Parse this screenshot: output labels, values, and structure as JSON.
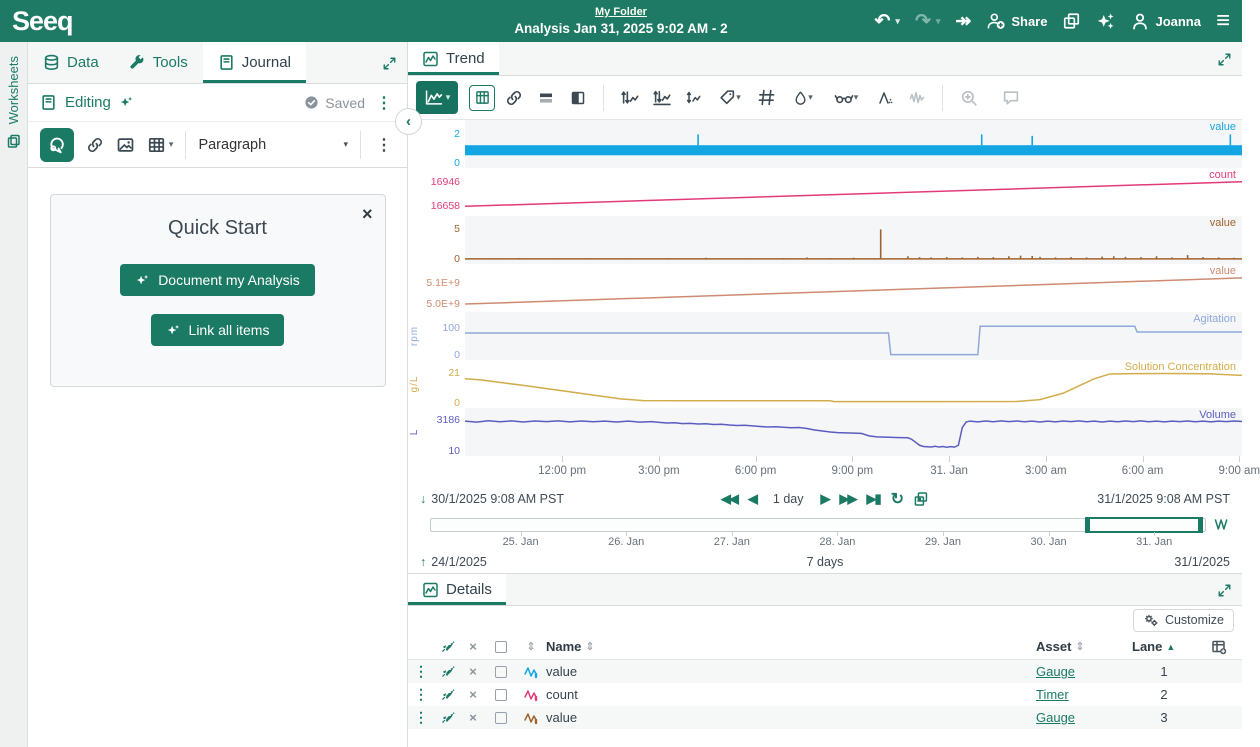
{
  "header": {
    "logo": "Seeq",
    "folder_link": "My Folder",
    "title": "Analysis Jan 31, 2025 9:02 AM - 2",
    "share_label": "Share",
    "user_name": "Joanna"
  },
  "worksheets_rail": {
    "label": "Worksheets"
  },
  "journal": {
    "tabs": [
      {
        "label": "Data"
      },
      {
        "label": "Tools"
      },
      {
        "label": "Journal"
      }
    ],
    "editing_label": "Editing",
    "saved_label": "Saved",
    "paragraph_label": "Paragraph",
    "quick_start": {
      "title": "Quick Start",
      "doc_button": "Document my Analysis",
      "link_button": "Link all items"
    }
  },
  "trend": {
    "tab_label": "Trend",
    "display_range": {
      "start": "30/1/2025 9:08 AM  PST",
      "end": "31/1/2025 9:08 AM  PST",
      "duration": "1 day"
    },
    "investigate_range": {
      "start": "24/1/2025",
      "end": "31/1/2025",
      "duration": "7 days"
    }
  },
  "details": {
    "tab_label": "Details",
    "customize_label": "Customize",
    "columns": {
      "name": "Name",
      "asset": "Asset",
      "lane": "Lane"
    },
    "rows": [
      {
        "name": "value",
        "asset": "Gauge",
        "lane": "1",
        "color": "#14a5e3"
      },
      {
        "name": "count",
        "asset": "Timer",
        "lane": "2",
        "color": "#e23a78"
      },
      {
        "name": "value",
        "asset": "Gauge",
        "lane": "3",
        "color": "#a0622d"
      }
    ]
  },
  "chart_data": {
    "type": "line",
    "x_axis_labels": [
      "12:00 pm",
      "3:00 pm",
      "6:00 pm",
      "9:00 pm",
      "31. Jan",
      "3:00 am",
      "6:00 am",
      "9:00 am"
    ],
    "x_range": [
      "30/1/2025 9:08 AM PST",
      "31/1/2025 9:08 AM PST"
    ],
    "navigator": {
      "day_labels": [
        "25. Jan",
        "26. Jan",
        "27. Jan",
        "28. Jan",
        "29. Jan",
        "30. Jan",
        "31. Jan"
      ],
      "range": [
        "24/1/2025",
        "31/1/2025"
      ],
      "selection_pct": [
        84.5,
        99.7
      ]
    },
    "lanes": [
      {
        "lane": 1,
        "label": "value",
        "color": "#14a5e3",
        "unit": "",
        "ylim": [
          0,
          2.4
        ],
        "yticks": [
          "2",
          "0"
        ],
        "tick_values": [
          2,
          0
        ],
        "series": [
          {
            "type": "band",
            "y_low": 0.55,
            "y_high": 1.25
          },
          {
            "type": "vlines",
            "base": 1.25,
            "points": [
              [
                30,
                2
              ],
              [
                66.5,
                2
              ],
              [
                73,
                1.9
              ],
              [
                98.5,
                2
              ]
            ]
          }
        ]
      },
      {
        "lane": 2,
        "label": "count",
        "color": "#e23a78",
        "unit": "",
        "ylim": [
          16600,
          17010
        ],
        "yticks": [
          "16946",
          "16658"
        ],
        "tick_values": [
          16946,
          16658
        ],
        "series": [
          {
            "type": "line",
            "points": [
              [
                0,
                16658
              ],
              [
                100,
                16950
              ]
            ]
          }
        ]
      },
      {
        "lane": 3,
        "label": "value",
        "color": "#a0622d",
        "unit": "",
        "ylim": [
          0,
          5.8
        ],
        "yticks": [
          "5",
          "0"
        ],
        "tick_values": [
          5,
          0
        ],
        "series": [
          {
            "type": "line",
            "points": [
              [
                0,
                0.05
              ],
              [
                100,
                0.05
              ]
            ]
          },
          {
            "type": "vlines",
            "base": 0,
            "points": [
              [
                4,
                0.15
              ],
              [
                7,
                0.2
              ],
              [
                12,
                0.15
              ],
              [
                16,
                0.2
              ],
              [
                21,
                0.15
              ],
              [
                26,
                0.2
              ],
              [
                31,
                0.25
              ],
              [
                36,
                0.15
              ],
              [
                41,
                0.2
              ],
              [
                44,
                0.3
              ],
              [
                47,
                0.2
              ],
              [
                50,
                0.25
              ],
              [
                53.5,
                5
              ],
              [
                57,
                0.5
              ],
              [
                58.5,
                0.35
              ],
              [
                60,
                0.3
              ],
              [
                62,
                0.35
              ],
              [
                64,
                0.3
              ],
              [
                66,
                0.4
              ],
              [
                68,
                0.35
              ],
              [
                70,
                0.5
              ],
              [
                71.5,
                0.6
              ],
              [
                73,
                0.55
              ],
              [
                74,
                0.4
              ],
              [
                76,
                0.3
              ],
              [
                78,
                0.35
              ],
              [
                80,
                0.3
              ],
              [
                82,
                0.45
              ],
              [
                83.5,
                0.5
              ],
              [
                85,
                0.4
              ],
              [
                87,
                0.35
              ],
              [
                89,
                0.5
              ],
              [
                91,
                0.3
              ],
              [
                93,
                0.7
              ],
              [
                95,
                0.35
              ],
              [
                97,
                0.3
              ],
              [
                99,
                0.25
              ]
            ]
          }
        ]
      },
      {
        "lane": 4,
        "label": "value",
        "color": "#ce8b72",
        "unit": "",
        "ylim": [
          4985000000,
          5150000000
        ],
        "yticks": [
          "5.1E+9",
          "5.0E+9"
        ],
        "tick_values": [
          5100000000,
          5000000000
        ],
        "series": [
          {
            "type": "line",
            "points": [
              [
                0,
                5000000000
              ],
              [
                100,
                5125000000
              ]
            ]
          }
        ]
      },
      {
        "lane": 5,
        "label": "Agitation",
        "color": "#8fa8db",
        "unit": "rpm",
        "ylim": [
          0,
          128
        ],
        "yticks": [
          "100",
          "0"
        ],
        "tick_values": [
          100,
          0
        ],
        "series": [
          {
            "type": "line",
            "points": [
              [
                0,
                82
              ],
              [
                54.5,
                82
              ],
              [
                54.8,
                2
              ],
              [
                66,
                2
              ],
              [
                66.3,
                107
              ],
              [
                86.2,
                107
              ],
              [
                86.5,
                86
              ],
              [
                100,
                86
              ]
            ]
          }
        ]
      },
      {
        "lane": 6,
        "label": "Solution Concentration",
        "color": "#d2ac4a",
        "unit": "g/L",
        "ylim": [
          0,
          24
        ],
        "yticks": [
          "21",
          "0"
        ],
        "tick_values": [
          21,
          0
        ],
        "series": [
          {
            "type": "line",
            "points": [
              [
                0,
                17
              ],
              [
                2,
                16.2
              ],
              [
                8,
                12
              ],
              [
                14,
                7.5
              ],
              [
                20,
                3
              ],
              [
                23,
                1.8
              ],
              [
                40,
                1.7
              ],
              [
                47,
                1.7
              ],
              [
                47.5,
                1.1
              ],
              [
                60,
                1.1
              ],
              [
                71,
                1.2
              ],
              [
                74,
                2.5
              ],
              [
                77,
                7
              ],
              [
                79,
                12
              ],
              [
                81,
                17
              ],
              [
                83,
                20.3
              ],
              [
                86,
                20.5
              ],
              [
                90,
                20.6
              ],
              [
                94,
                20.5
              ],
              [
                96,
                20.4
              ],
              [
                98,
                19.8
              ],
              [
                100,
                19.3
              ]
            ]
          }
        ]
      },
      {
        "lane": 7,
        "label": "Volume",
        "color": "#5c5cc0",
        "unit": "L",
        "ylim": [
          0,
          3500
        ],
        "yticks": [
          "3186",
          "10"
        ],
        "tick_values": [
          3186,
          10
        ],
        "series": [
          {
            "type": "line",
            "points": [
              [
                0,
                3050
              ],
              [
                1.5,
                2950
              ],
              [
                3,
                3080
              ],
              [
                4.5,
                2980
              ],
              [
                6,
                3070
              ],
              [
                7.5,
                2960
              ],
              [
                9,
                3060
              ],
              [
                10.5,
                2990
              ],
              [
                12,
                3075
              ],
              [
                13.5,
                2970
              ],
              [
                15,
                3060
              ],
              [
                16.5,
                2980
              ],
              [
                18,
                3050
              ],
              [
                19.5,
                2960
              ],
              [
                21,
                3040
              ],
              [
                22.5,
                2950
              ],
              [
                24,
                3000
              ],
              [
                25,
                2920
              ],
              [
                26,
                2850
              ],
              [
                27,
                2880
              ],
              [
                28,
                2790
              ],
              [
                29,
                2820
              ],
              [
                30,
                2750
              ],
              [
                31,
                2780
              ],
              [
                32,
                2700
              ],
              [
                33,
                2730
              ],
              [
                34,
                2650
              ],
              [
                35,
                2600
              ],
              [
                36,
                2630
              ],
              [
                37,
                2560
              ],
              [
                38,
                2500
              ],
              [
                39,
                2450
              ],
              [
                40,
                2480
              ],
              [
                41,
                2420
              ],
              [
                42,
                2380
              ],
              [
                43,
                2400
              ],
              [
                44,
                2300
              ],
              [
                45,
                2150
              ],
              [
                46,
                2050
              ],
              [
                47,
                1950
              ],
              [
                48,
                1880
              ],
              [
                49,
                1850
              ],
              [
                50,
                1830
              ],
              [
                51,
                1800
              ],
              [
                52,
                1550
              ],
              [
                53,
                1450
              ],
              [
                54,
                1430
              ],
              [
                55,
                1400
              ],
              [
                56,
                1380
              ],
              [
                57,
                1360
              ],
              [
                57.5,
                1200
              ],
              [
                58,
                900
              ],
              [
                58.5,
                600
              ],
              [
                59,
                480
              ],
              [
                60,
                430
              ],
              [
                60.5,
                500
              ],
              [
                61,
                420
              ],
              [
                61.5,
                470
              ],
              [
                62,
                400
              ],
              [
                62.5,
                460
              ],
              [
                63,
                410
              ],
              [
                63.5,
                600
              ],
              [
                64,
                2400
              ],
              [
                64.5,
                2950
              ],
              [
                65,
                3050
              ],
              [
                66,
                2970
              ],
              [
                67,
                3060
              ],
              [
                68,
                2980
              ],
              [
                69,
                3070
              ],
              [
                70,
                2990
              ],
              [
                71,
                3060
              ],
              [
                72,
                2980
              ],
              [
                73,
                3050
              ],
              [
                74,
                2960
              ],
              [
                75,
                3040
              ],
              [
                76,
                2970
              ],
              [
                77,
                3060
              ],
              [
                78,
                2990
              ],
              [
                79,
                3070
              ],
              [
                80,
                2980
              ],
              [
                81,
                3050
              ],
              [
                82,
                2960
              ],
              [
                83,
                3040
              ],
              [
                84,
                2980
              ],
              [
                85,
                3060
              ],
              [
                86,
                2990
              ],
              [
                87,
                3070
              ],
              [
                88,
                2980
              ],
              [
                89,
                3050
              ],
              [
                90,
                2970
              ],
              [
                91,
                3040
              ],
              [
                92,
                2990
              ],
              [
                93,
                3060
              ],
              [
                94,
                2980
              ],
              [
                95,
                3050
              ],
              [
                96,
                2970
              ],
              [
                97,
                3040
              ],
              [
                98,
                2990
              ],
              [
                99,
                3055
              ],
              [
                100,
                3010
              ]
            ]
          }
        ]
      }
    ]
  }
}
